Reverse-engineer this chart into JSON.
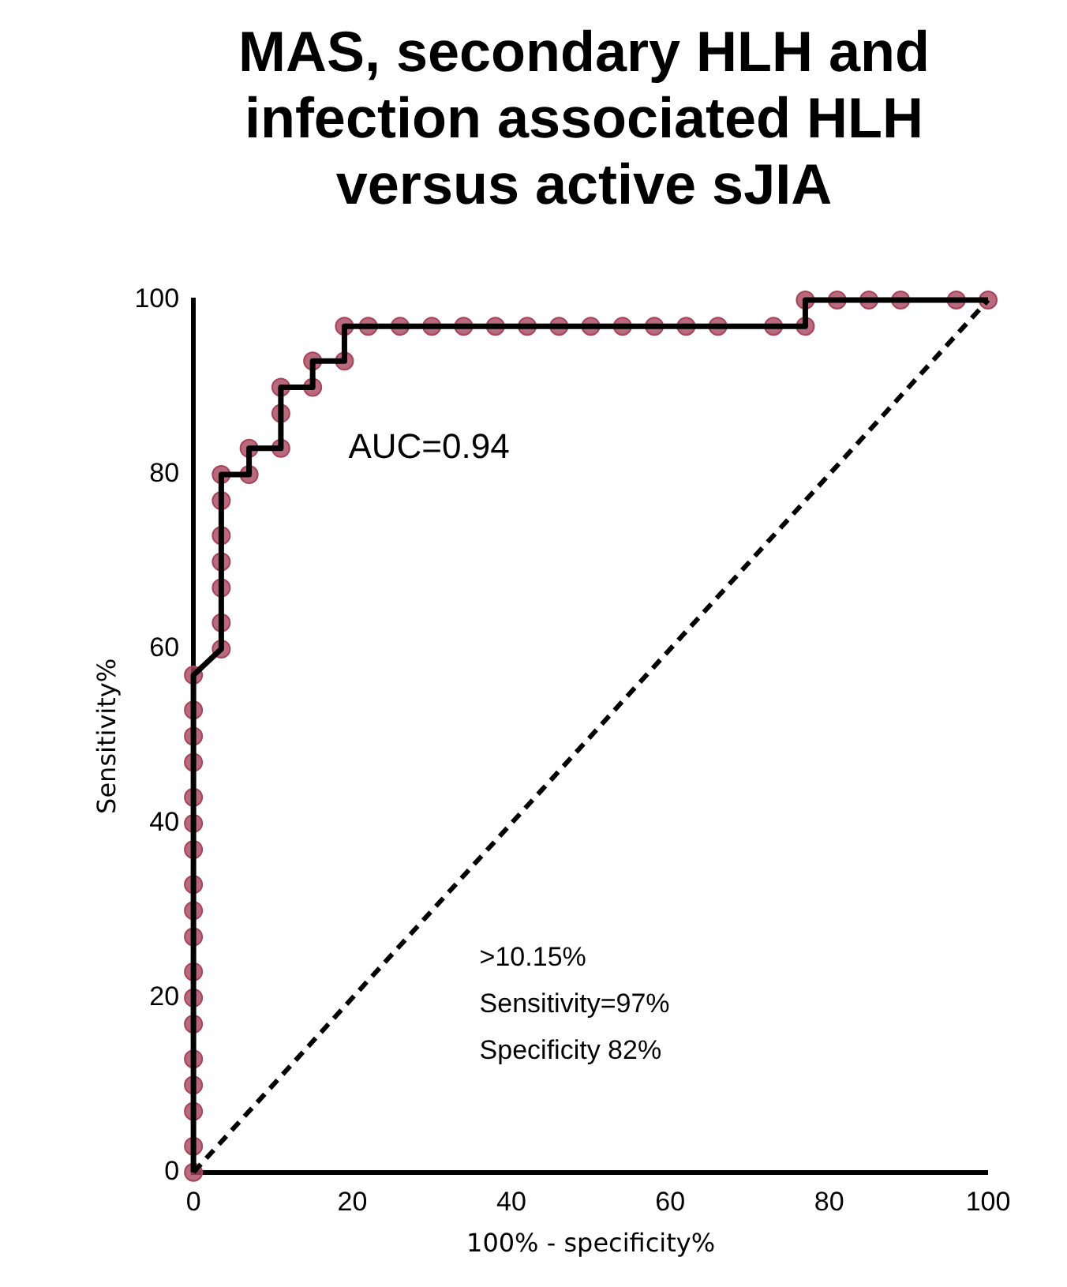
{
  "chart_data": {
    "type": "line",
    "title": "MAS, secondary HLH and infection associated HLH versus active sJIA",
    "xlabel": "100% - specificity%",
    "ylabel": "Sensitivity%",
    "xlim": [
      0,
      100
    ],
    "xticks": [
      0,
      20,
      40,
      60,
      80,
      100
    ],
    "ylim": [
      0,
      100
    ],
    "yticks": [
      0,
      20,
      40,
      60,
      80,
      100
    ],
    "grid": false,
    "legend": false,
    "annotations": [
      "AUC=0.94",
      ">10.15%",
      "Sensitivity=97%",
      "Specificity 82%"
    ],
    "series": [
      {
        "type": "line",
        "color": "#000000",
        "marker": "none",
        "line_style": "solid",
        "x": [
          0,
          0,
          3.5,
          3.5,
          7,
          7,
          11,
          11,
          15,
          15,
          19,
          19,
          77,
          77,
          100
        ],
        "values": [
          0,
          57,
          60,
          80,
          80,
          83,
          83,
          90,
          90,
          93,
          93,
          97,
          97,
          100,
          100
        ]
      },
      {
        "type": "scatter",
        "color": "#a8455c",
        "marker": "circle",
        "x": [
          0,
          0,
          0,
          0,
          0,
          0,
          0,
          0,
          0,
          0,
          0,
          0,
          0,
          0,
          0,
          0,
          0,
          0,
          3.5,
          3.5,
          3.5,
          3.5,
          3.5,
          3.5,
          3.5,
          7,
          7,
          11,
          11,
          11,
          15,
          15,
          19,
          19,
          22,
          26,
          30,
          34,
          38,
          42,
          46,
          50,
          54,
          58,
          62,
          66,
          73,
          77,
          77,
          81,
          85,
          89,
          96,
          100
        ],
        "values": [
          0,
          3,
          7,
          10,
          13,
          17,
          20,
          23,
          27,
          30,
          33,
          37,
          40,
          43,
          47,
          50,
          53,
          57,
          60,
          63,
          67,
          70,
          73,
          77,
          80,
          80,
          83,
          83,
          87,
          90,
          90,
          93,
          93,
          97,
          97,
          97,
          97,
          97,
          97,
          97,
          97,
          97,
          97,
          97,
          97,
          97,
          97,
          97,
          100,
          100,
          100,
          100,
          100,
          100
        ]
      },
      {
        "type": "line",
        "color": "#000000",
        "marker": "none",
        "line_style": "dashed",
        "x": [
          0,
          100
        ],
        "values": [
          0,
          100
        ]
      }
    ]
  }
}
